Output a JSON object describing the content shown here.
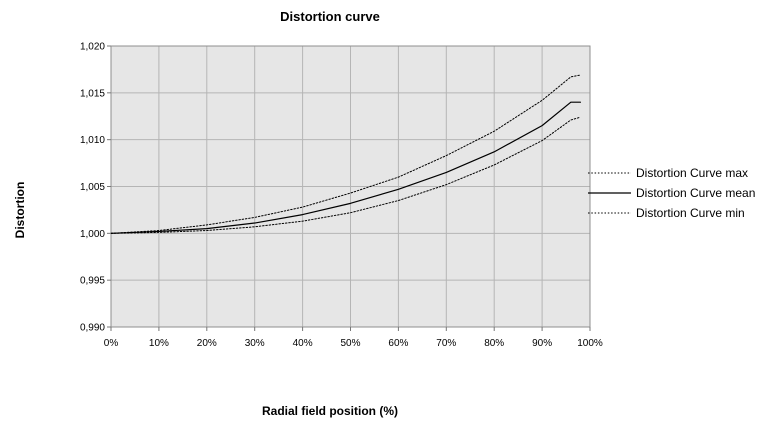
{
  "chart_data": {
    "type": "line",
    "title": "Distortion curve",
    "xlabel": "Radial field position (%)",
    "ylabel": "Distortion",
    "x_ticks": [
      "0%",
      "10%",
      "20%",
      "30%",
      "40%",
      "50%",
      "60%",
      "70%",
      "80%",
      "90%",
      "100%"
    ],
    "y_ticks": [
      "0,990",
      "0,995",
      "1,000",
      "1,005",
      "1,010",
      "1,015",
      "1,020"
    ],
    "xlim": [
      0,
      100
    ],
    "ylim": [
      0.99,
      1.02
    ],
    "grid": true,
    "legend_position": "right",
    "background_color": "#e6e6e6",
    "grid_color": "#b5b5b5",
    "series": [
      {
        "name": "Distortion Curve max",
        "line_style": "dotted",
        "color": "#000000",
        "x": [
          0,
          10,
          20,
          30,
          40,
          50,
          60,
          70,
          80,
          90,
          96,
          98
        ],
        "y": [
          1.0,
          1.0003,
          1.0009,
          1.0017,
          1.0028,
          1.0043,
          1.006,
          1.0083,
          1.0109,
          1.0142,
          1.0167,
          1.0169
        ]
      },
      {
        "name": "Distortion Curve mean",
        "line_style": "solid",
        "color": "#000000",
        "x": [
          0,
          10,
          20,
          30,
          40,
          50,
          60,
          70,
          80,
          90,
          96,
          98
        ],
        "y": [
          1.0,
          1.0002,
          1.0005,
          1.0011,
          1.002,
          1.0032,
          1.0047,
          1.0065,
          1.0087,
          1.0115,
          1.014,
          1.014
        ]
      },
      {
        "name": "Distortion Curve min",
        "line_style": "dotted",
        "color": "#000000",
        "x": [
          0,
          10,
          20,
          30,
          40,
          50,
          60,
          70,
          80,
          90,
          96,
          98
        ],
        "y": [
          1.0,
          1.0001,
          1.0003,
          1.0007,
          1.0013,
          1.0022,
          1.0035,
          1.0052,
          1.0073,
          1.0099,
          1.0121,
          1.0124
        ]
      }
    ]
  }
}
